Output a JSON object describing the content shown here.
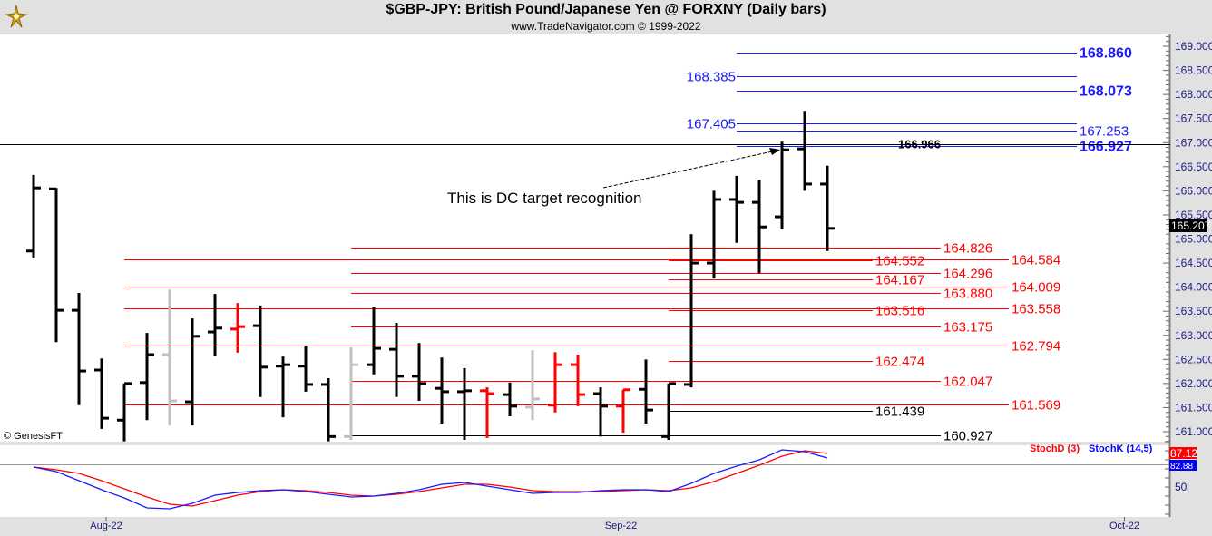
{
  "header": {
    "title": "$GBP-JPY:  British Pound/Japanese Yen @ FORXNY  (Daily bars)",
    "subtitle": "www.TradeNavigator.com © 1999-2022",
    "logo_icon": "genesis-logo-icon"
  },
  "watermark": "© GenesisFT",
  "annotation": {
    "text": "This is DC target recognition",
    "target_bar": 33
  },
  "current_price": "165.207",
  "colors": {
    "up": "#000000",
    "red": "#ff0000",
    "gray": "#c0c0c0",
    "blue": "#1a1aff",
    "stochD": "#ff0000",
    "stochK": "#0000ff"
  },
  "chart_data": {
    "type": "ohlc",
    "symbol": "$GBP-JPY",
    "ylim": [
      160.8,
      169.2
    ],
    "y_ticks": [
      "169.000",
      "168.500",
      "168.000",
      "167.500",
      "167.000",
      "166.500",
      "166.000",
      "165.500",
      "165.000",
      "164.500",
      "164.000",
      "163.500",
      "163.000",
      "162.500",
      "162.000",
      "161.500",
      "161.000"
    ],
    "x_ticks": [
      {
        "label": "Aug-22",
        "bar": 3.2
      },
      {
        "label": "Sep-22",
        "bar": 25.9
      },
      {
        "label": "Oct-22",
        "bar": 48.1
      }
    ],
    "bars": [
      {
        "o": 164.75,
        "h": 166.33,
        "l": 164.61,
        "c": 166.06,
        "color": "black"
      },
      {
        "o": 166.04,
        "h": 166.06,
        "l": 162.86,
        "c": 163.52,
        "color": "black"
      },
      {
        "o": 163.52,
        "h": 163.88,
        "l": 161.55,
        "c": 162.26,
        "color": "black"
      },
      {
        "o": 162.28,
        "h": 162.52,
        "l": 161.06,
        "c": 161.28,
        "color": "black"
      },
      {
        "o": 161.24,
        "h": 162.0,
        "l": 160.8,
        "c": 162.0,
        "color": "black"
      },
      {
        "o": 162.02,
        "h": 163.05,
        "l": 161.24,
        "c": 162.6,
        "color": "black"
      },
      {
        "o": 162.6,
        "h": 163.95,
        "l": 161.13,
        "c": 161.64,
        "color": "gray"
      },
      {
        "o": 161.62,
        "h": 163.35,
        "l": 161.13,
        "c": 162.98,
        "color": "black"
      },
      {
        "o": 163.07,
        "h": 163.86,
        "l": 162.58,
        "c": 163.15,
        "color": "black"
      },
      {
        "o": 163.13,
        "h": 163.67,
        "l": 162.64,
        "c": 163.18,
        "color": "red"
      },
      {
        "o": 163.2,
        "h": 163.62,
        "l": 161.72,
        "c": 162.34,
        "color": "black"
      },
      {
        "o": 162.36,
        "h": 162.56,
        "l": 161.3,
        "c": 162.39,
        "color": "black"
      },
      {
        "o": 162.36,
        "h": 162.79,
        "l": 161.83,
        "c": 161.98,
        "color": "black"
      },
      {
        "o": 161.98,
        "h": 162.11,
        "l": 160.8,
        "c": 160.9,
        "color": "black"
      },
      {
        "o": 160.9,
        "h": 162.75,
        "l": 160.83,
        "c": 162.39,
        "color": "gray"
      },
      {
        "o": 162.39,
        "h": 163.58,
        "l": 162.19,
        "c": 162.73,
        "color": "black"
      },
      {
        "o": 162.71,
        "h": 163.26,
        "l": 161.72,
        "c": 162.15,
        "color": "black"
      },
      {
        "o": 162.15,
        "h": 162.84,
        "l": 161.64,
        "c": 162.0,
        "color": "black"
      },
      {
        "o": 161.9,
        "h": 162.54,
        "l": 161.17,
        "c": 161.83,
        "color": "black"
      },
      {
        "o": 161.83,
        "h": 162.32,
        "l": 160.83,
        "c": 161.85,
        "color": "black"
      },
      {
        "o": 161.85,
        "h": 161.92,
        "l": 160.87,
        "c": 161.79,
        "color": "red"
      },
      {
        "o": 161.77,
        "h": 162.02,
        "l": 161.32,
        "c": 161.53,
        "color": "black"
      },
      {
        "o": 161.51,
        "h": 162.69,
        "l": 161.24,
        "c": 161.68,
        "color": "gray"
      },
      {
        "o": 161.55,
        "h": 162.65,
        "l": 161.4,
        "c": 162.39,
        "color": "red"
      },
      {
        "o": 162.39,
        "h": 162.6,
        "l": 161.53,
        "c": 161.77,
        "color": "red"
      },
      {
        "o": 161.79,
        "h": 161.92,
        "l": 160.9,
        "c": 161.53,
        "color": "black"
      },
      {
        "o": 161.53,
        "h": 161.87,
        "l": 160.98,
        "c": 161.87,
        "color": "red"
      },
      {
        "o": 161.88,
        "h": 162.5,
        "l": 161.17,
        "c": 161.45,
        "color": "black"
      },
      {
        "o": 160.9,
        "h": 162.0,
        "l": 160.83,
        "c": 162.0,
        "color": "black"
      },
      {
        "o": 161.98,
        "h": 165.1,
        "l": 161.92,
        "c": 164.5,
        "color": "black"
      },
      {
        "o": 164.5,
        "h": 166.0,
        "l": 164.18,
        "c": 165.82,
        "color": "black"
      },
      {
        "o": 165.82,
        "h": 166.31,
        "l": 164.92,
        "c": 165.76,
        "color": "black"
      },
      {
        "o": 165.76,
        "h": 166.23,
        "l": 164.29,
        "c": 165.25,
        "color": "black"
      },
      {
        "o": 165.46,
        "h": 167.02,
        "l": 165.2,
        "c": 166.85,
        "color": "black"
      },
      {
        "o": 166.87,
        "h": 167.66,
        "l": 166.0,
        "c": 166.14,
        "color": "black"
      },
      {
        "o": 166.14,
        "h": 166.52,
        "l": 164.75,
        "c": 165.22,
        "color": "black"
      }
    ],
    "levels": [
      {
        "value": "168.860",
        "color": "blue",
        "group": "D",
        "label_side": "right",
        "bold": true
      },
      {
        "value": "168.385",
        "color": "blue",
        "group": "D",
        "label_side": "left",
        "bold": false
      },
      {
        "value": "168.073",
        "color": "blue",
        "group": "D",
        "label_side": "right",
        "bold": true
      },
      {
        "value": "167.405",
        "color": "blue",
        "group": "D",
        "label_side": "left",
        "bold": false
      },
      {
        "value": "167.253",
        "color": "blue",
        "group": "D",
        "label_side": "right",
        "bold": false
      },
      {
        "value": "166.927",
        "color": "blue",
        "group": "D",
        "label_side": "right",
        "bold": true
      },
      {
        "value": "166.966",
        "color": "black",
        "group": "F",
        "label_side": "right",
        "bold": true
      },
      {
        "value": "164.826",
        "color": "red",
        "group": "B",
        "label_side": "right",
        "bold": false
      },
      {
        "value": "164.584",
        "color": "red",
        "group": "A",
        "label_side": "right",
        "bold": false
      },
      {
        "value": "164.552",
        "color": "red",
        "group": "C",
        "label_side": "right",
        "bold": false
      },
      {
        "value": "164.296",
        "color": "red",
        "group": "B",
        "label_side": "right",
        "bold": false
      },
      {
        "value": "164.167",
        "color": "red",
        "group": "C",
        "label_side": "right",
        "bold": false
      },
      {
        "value": "164.009",
        "color": "red",
        "group": "A",
        "label_side": "right",
        "bold": false
      },
      {
        "value": "163.880",
        "color": "red",
        "group": "B",
        "label_side": "right",
        "bold": false
      },
      {
        "value": "163.558",
        "color": "red",
        "group": "A",
        "label_side": "right",
        "bold": false
      },
      {
        "value": "163.516",
        "color": "red",
        "group": "C",
        "label_side": "right",
        "bold": false
      },
      {
        "value": "163.175",
        "color": "red",
        "group": "B",
        "label_side": "right",
        "bold": false
      },
      {
        "value": "162.794",
        "color": "red",
        "group": "A",
        "label_side": "right",
        "bold": false
      },
      {
        "value": "162.474",
        "color": "red",
        "group": "C",
        "label_side": "right",
        "bold": false
      },
      {
        "value": "162.047",
        "color": "red",
        "group": "B",
        "label_side": "right",
        "bold": false
      },
      {
        "value": "161.569",
        "color": "red",
        "group": "A",
        "label_side": "right",
        "bold": false
      },
      {
        "value": "161.439",
        "color": "black",
        "group": "C",
        "label_side": "right",
        "bold": false
      },
      {
        "value": "160.927",
        "color": "black",
        "group": "B",
        "label_side": "right",
        "bold": false
      }
    ],
    "stochastic": {
      "ylim": [
        0,
        100
      ],
      "y_ticks": [
        "50"
      ],
      "series": [
        {
          "name": "StochD (3)",
          "color": "red",
          "last_label": "87.12",
          "values": [
            72,
            69,
            65,
            57,
            48,
            39,
            31,
            29,
            35,
            41,
            45,
            47,
            46,
            44,
            41,
            40,
            42,
            45,
            49,
            53,
            53,
            50,
            46,
            45,
            45,
            45,
            46,
            47,
            46,
            49,
            56,
            65,
            74,
            84,
            90,
            87
          ]
        },
        {
          "name": "StochK (14,5)",
          "color": "blue",
          "last_label": "82.88",
          "values": [
            72,
            67,
            57,
            47,
            38,
            27,
            26,
            32,
            41,
            44,
            46,
            47,
            45,
            42,
            39,
            40,
            43,
            47,
            53,
            55,
            51,
            47,
            43,
            44,
            44,
            46,
            47,
            47,
            45,
            54,
            65,
            73,
            80,
            91,
            89,
            82
          ]
        }
      ]
    }
  }
}
